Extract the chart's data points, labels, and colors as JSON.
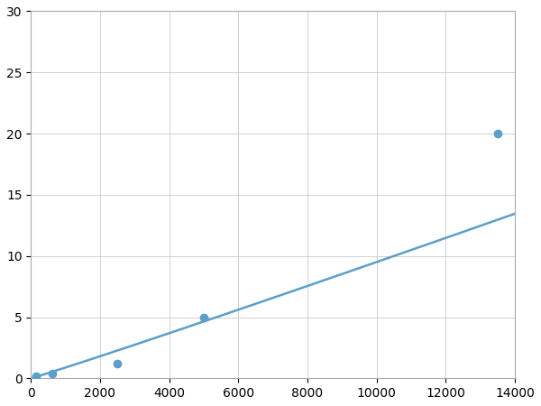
{
  "x_points": [
    156.25,
    625,
    2500,
    5000,
    13500
  ],
  "y_points": [
    0.2,
    0.4,
    1.2,
    5.0,
    20.0
  ],
  "line_color": "#5b9ec9",
  "marker_color": "#5b9ec9",
  "marker_size": 6,
  "line_width": 1.8,
  "xlim": [
    0,
    14000
  ],
  "ylim": [
    0,
    30
  ],
  "xticks": [
    0,
    2000,
    4000,
    6000,
    8000,
    10000,
    12000,
    14000
  ],
  "yticks": [
    0,
    5,
    10,
    15,
    20,
    25,
    30
  ],
  "grid_color": "#d0d0d0",
  "background_color": "#ffffff",
  "tick_fontsize": 10
}
